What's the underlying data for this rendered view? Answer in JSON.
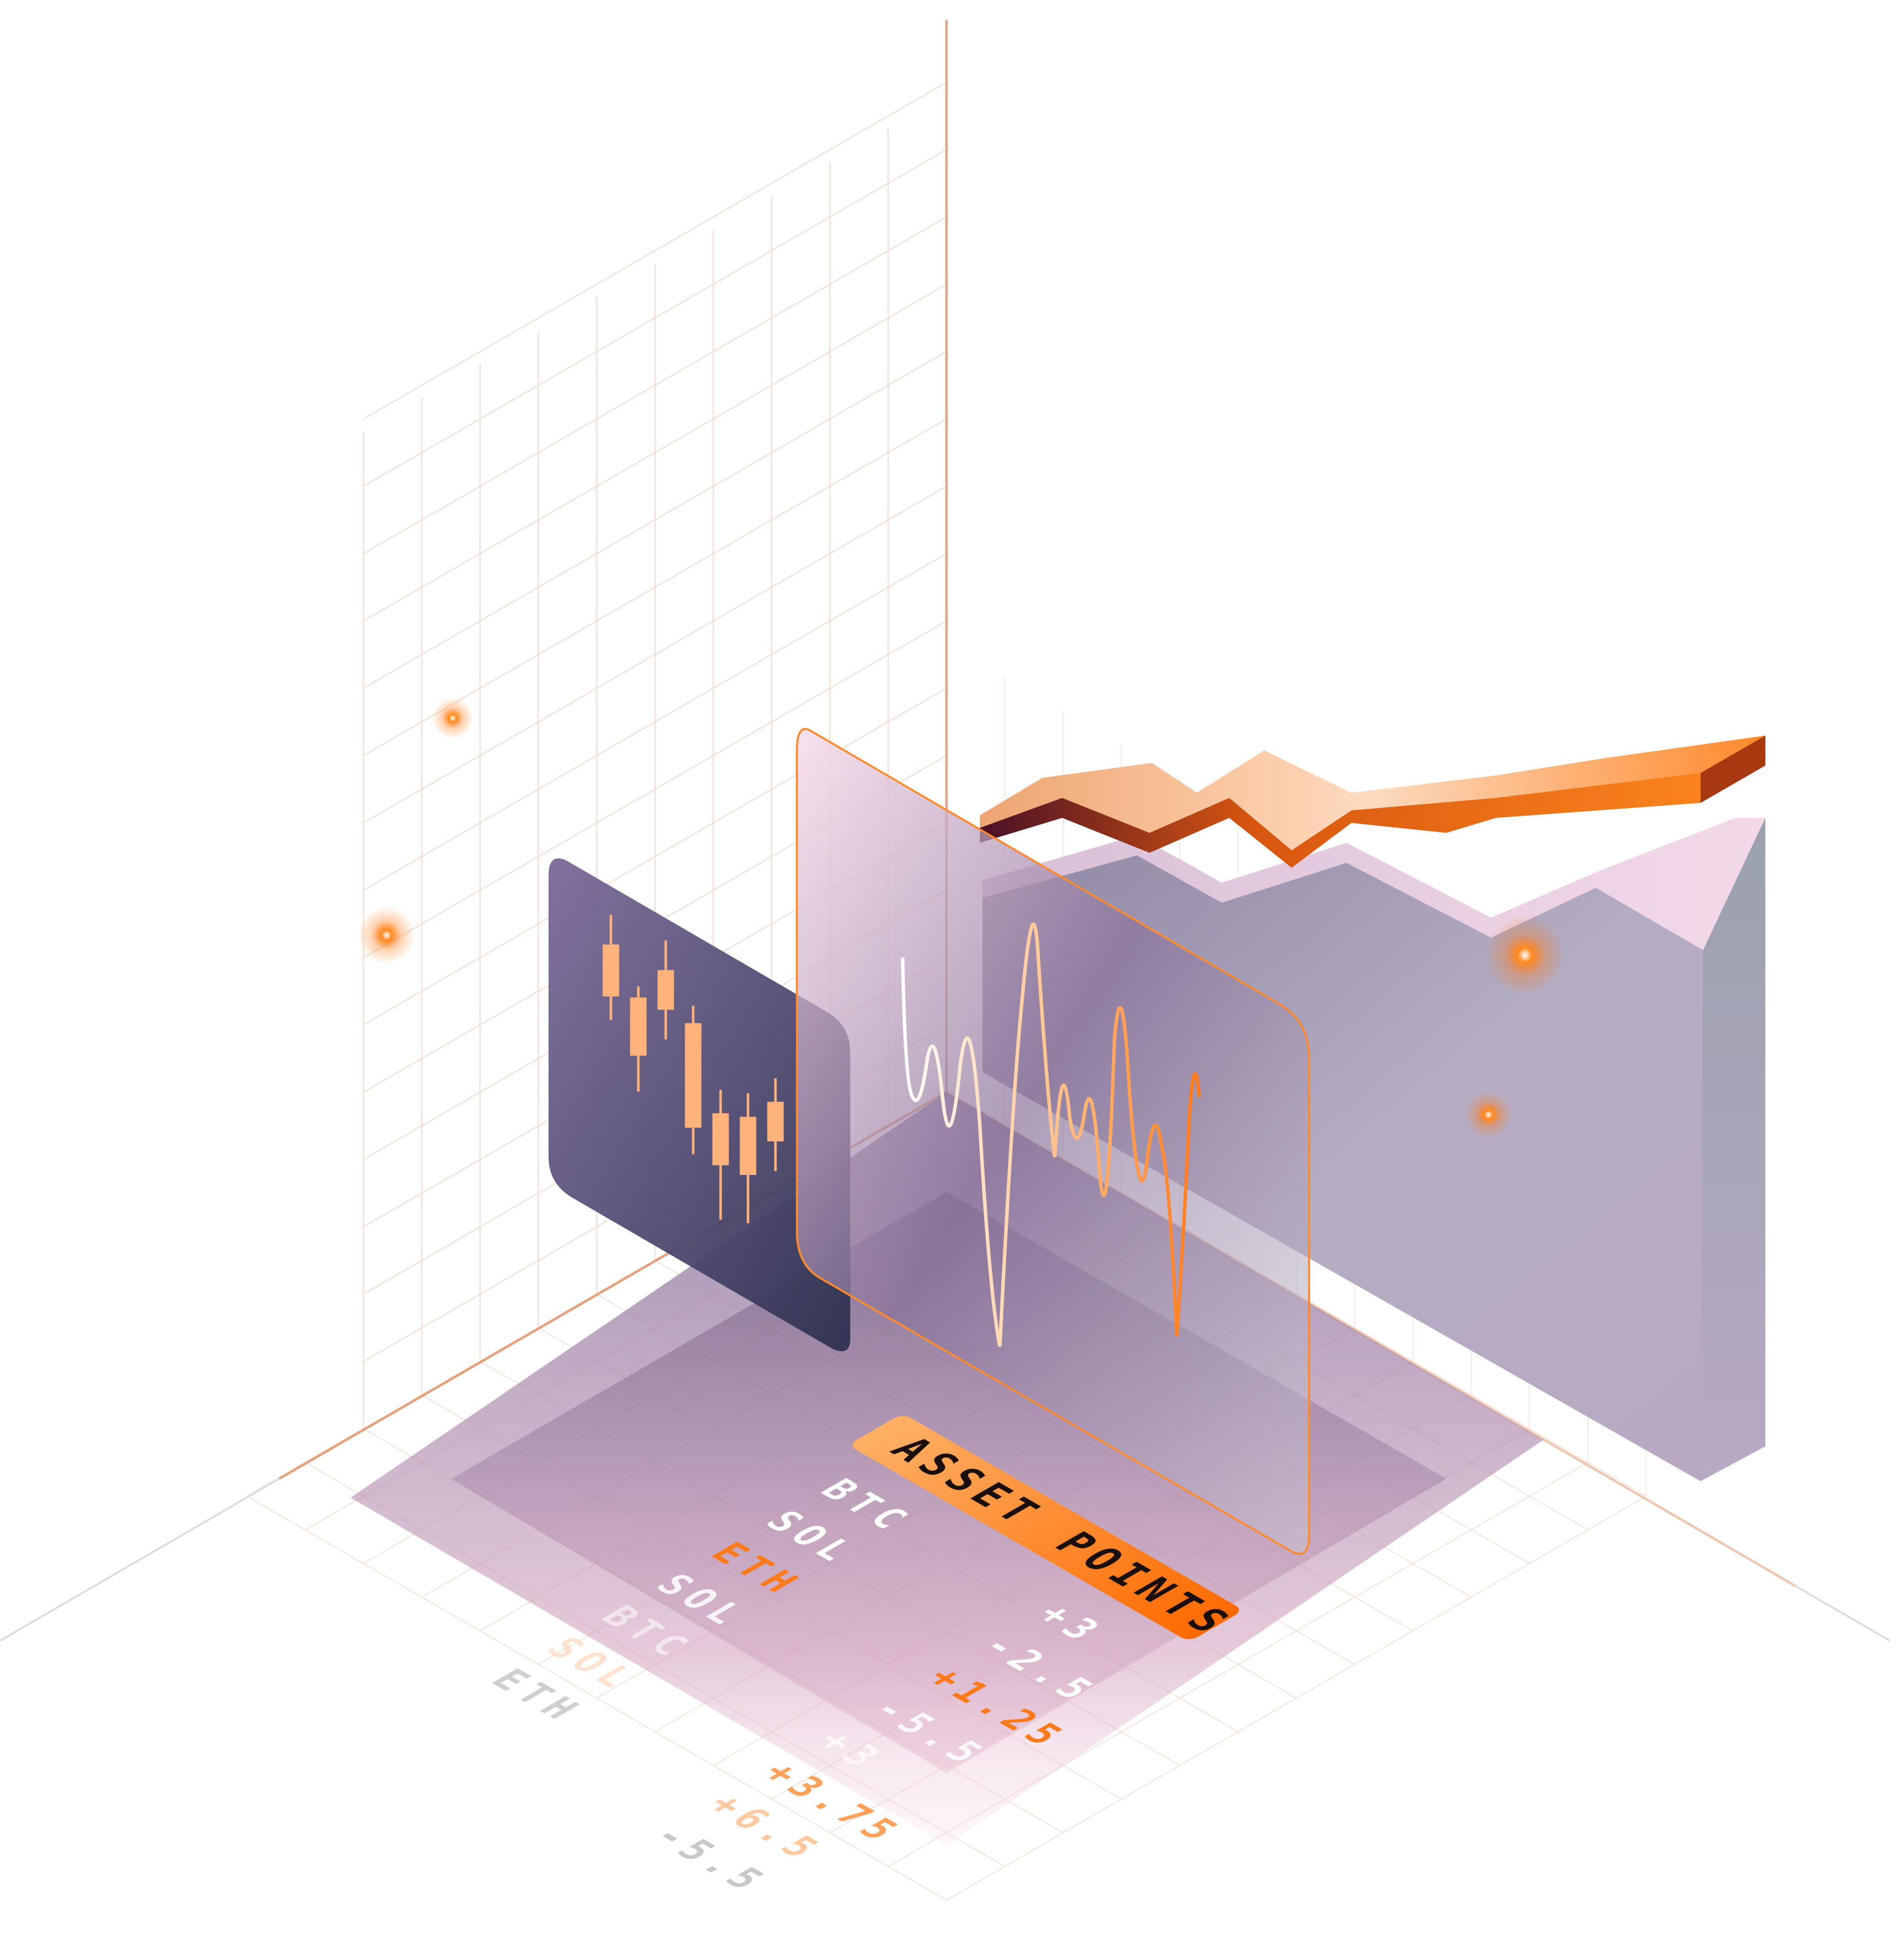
{
  "colors": {
    "accent": "#ff7a1a",
    "accent_dark": "#c24a0a",
    "accent_shadow": "#4a1226",
    "panel_purple": "#6b5a87",
    "panel_glass": "#b9a6c7",
    "floor": "#9a88ad",
    "wall": "#aaa3b8",
    "grid_line": "#f2d6c8"
  },
  "table": {
    "header": {
      "asset": "ASSET",
      "points": "POINTS"
    },
    "rows": [
      {
        "asset": "BTC",
        "points": "+3"
      },
      {
        "asset": "SOL",
        "points": "-2.5"
      },
      {
        "asset": "ETH",
        "points": "+1.25"
      },
      {
        "asset": "SOL",
        "points": "-5.5"
      },
      {
        "asset": "BTC",
        "points": "+3"
      },
      {
        "asset": "SOL",
        "points": "+3.75"
      },
      {
        "asset": "ETH",
        "points": "+6.5"
      },
      {
        "asset": "",
        "points": "-5.5"
      }
    ]
  },
  "candlesticks": [
    {
      "open": 62,
      "close": 78,
      "high": 88,
      "low": 54
    },
    {
      "open": 48,
      "close": 66,
      "high": 70,
      "low": 36
    },
    {
      "open": 68,
      "close": 80,
      "high": 90,
      "low": 58
    },
    {
      "open": 35,
      "close": 68,
      "high": 74,
      "low": 26
    },
    {
      "open": 28,
      "close": 44,
      "high": 52,
      "low": 10
    },
    {
      "open": 30,
      "close": 48,
      "high": 56,
      "low": 14
    },
    {
      "open": 46,
      "close": 58,
      "high": 66,
      "low": 36
    }
  ]
}
